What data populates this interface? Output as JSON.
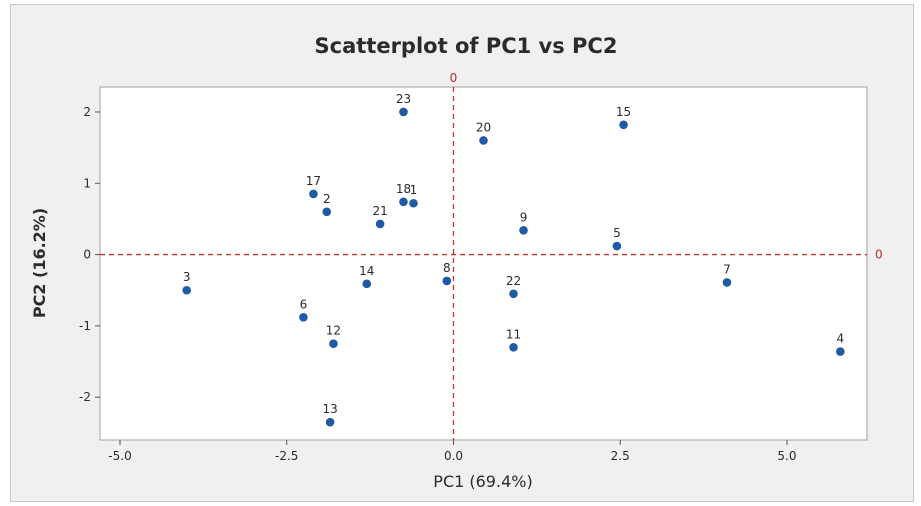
{
  "chart_data": {
    "type": "scatter",
    "title": "Scatterplot of PC1 vs PC2",
    "xlabel": "PC1 (69.4%)",
    "ylabel": "PC2 (16.2%)",
    "xlim": [
      -5.3,
      6.2
    ],
    "ylim": [
      -2.6,
      2.35
    ],
    "xticks": [
      -5.0,
      -2.5,
      0.0,
      2.5,
      5.0
    ],
    "xtick_labels": [
      "-5.0",
      "-2.5",
      "0.0",
      "2.5",
      "5.0"
    ],
    "yticks": [
      -2,
      -1,
      0,
      1,
      2
    ],
    "ytick_labels": [
      "-2",
      "-1",
      "0",
      "1",
      "2"
    ],
    "grid": false,
    "point_color": "#1f5aa6",
    "reference_line_color": "#c0392b",
    "reference_lines": [
      {
        "axis": "x",
        "value": 0,
        "label": "0"
      },
      {
        "axis": "y",
        "value": 0,
        "label": "0"
      }
    ],
    "points": [
      {
        "label": "1",
        "x": -0.6,
        "y": 0.72
      },
      {
        "label": "2",
        "x": -1.9,
        "y": 0.6
      },
      {
        "label": "3",
        "x": -4.0,
        "y": -0.5
      },
      {
        "label": "4",
        "x": 5.8,
        "y": -1.36
      },
      {
        "label": "5",
        "x": 2.45,
        "y": 0.12
      },
      {
        "label": "6",
        "x": -2.25,
        "y": -0.88
      },
      {
        "label": "7",
        "x": 4.1,
        "y": -0.39
      },
      {
        "label": "8",
        "x": -0.1,
        "y": -0.37
      },
      {
        "label": "9",
        "x": 1.05,
        "y": 0.34
      },
      {
        "label": "11",
        "x": 0.9,
        "y": -1.3
      },
      {
        "label": "12",
        "x": -1.8,
        "y": -1.25
      },
      {
        "label": "13",
        "x": -1.85,
        "y": -2.35
      },
      {
        "label": "14",
        "x": -1.3,
        "y": -0.41
      },
      {
        "label": "15",
        "x": 2.55,
        "y": 1.82
      },
      {
        "label": "17",
        "x": -2.1,
        "y": 0.85
      },
      {
        "label": "18",
        "x": -0.75,
        "y": 0.74
      },
      {
        "label": "20",
        "x": 0.45,
        "y": 1.6
      },
      {
        "label": "21",
        "x": -1.1,
        "y": 0.43
      },
      {
        "label": "22",
        "x": 0.9,
        "y": -0.55
      },
      {
        "label": "23",
        "x": -0.75,
        "y": 2.0
      }
    ]
  }
}
